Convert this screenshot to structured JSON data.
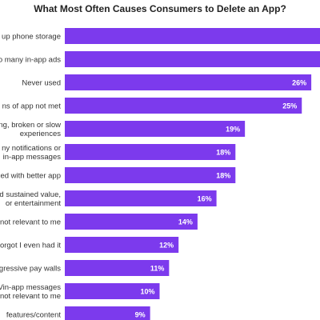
{
  "colors": {
    "bar": "#7c3aed",
    "label_text": "#333333",
    "value_text": "#ffffff"
  },
  "chart_data": {
    "type": "bar",
    "orientation": "horizontal",
    "title": "What Most Often Causes Consumers to Delete an App?",
    "categories": [
      "up phone storage",
      "o many in-app ads",
      "Never used",
      "ns of app not met",
      "ng, broken or slow\nexperiences",
      "ny notifications or\nin-app messages",
      "ed with better app",
      "d sustained value,\nor entertainment",
      "not relevant to me",
      "orgot I even had it",
      "gressive pay walls",
      "Vin-app messages\nnot relevant to me",
      "features/content"
    ],
    "values": [
      null,
      null,
      26,
      25,
      19,
      18,
      18,
      16,
      14,
      12,
      11,
      10,
      9
    ],
    "value_labels": [
      "",
      "",
      "26%",
      "25%",
      "19%",
      "18%",
      "18%",
      "16%",
      "14%",
      "12%",
      "11%",
      "10%",
      "9%"
    ],
    "xlim": [
      0,
      40
    ],
    "grid": false,
    "legend": "none"
  }
}
